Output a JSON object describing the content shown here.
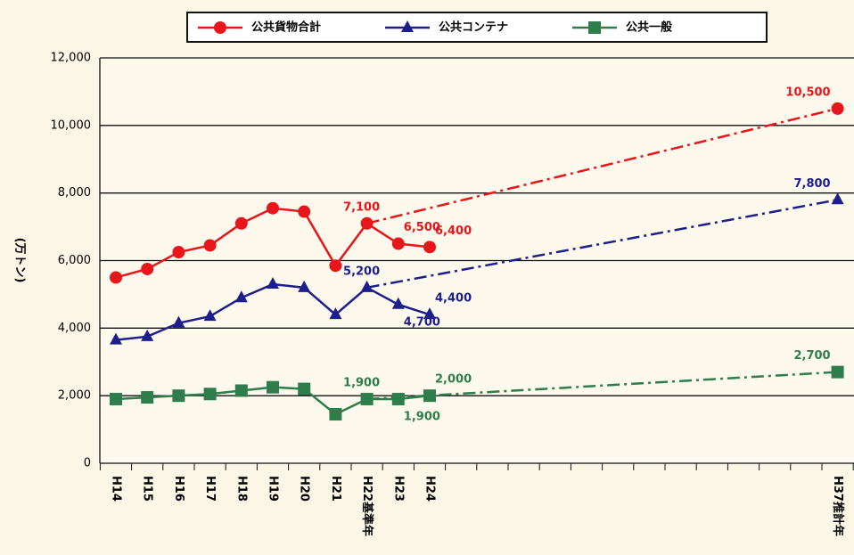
{
  "chart_data": {
    "type": "line",
    "ylabel": "(万トン)",
    "categories": [
      "H14",
      "H15",
      "H16",
      "H17",
      "H18",
      "H19",
      "H20",
      "H21",
      "H22基準年",
      "H23",
      "H24",
      null,
      null,
      null,
      null,
      null,
      null,
      null,
      null,
      null,
      null,
      null,
      null,
      "H37推計年"
    ],
    "series": [
      {
        "name": "公共貨物合計",
        "color": "#e8161b",
        "marker": "circle",
        "values": [
          5500,
          5750,
          6250,
          6450,
          7100,
          7550,
          7450,
          5850,
          7100,
          6500,
          6400,
          null,
          null,
          null,
          null,
          null,
          null,
          null,
          null,
          null,
          null,
          null,
          null,
          10500
        ],
        "value_labels": [
          null,
          null,
          null,
          null,
          null,
          null,
          null,
          null,
          "7,100",
          "6,500",
          "6,400",
          null,
          null,
          null,
          null,
          null,
          null,
          null,
          null,
          null,
          null,
          null,
          null,
          "10,500"
        ]
      },
      {
        "name": "公共コンテナ",
        "color": "#1c1f8c",
        "marker": "triangle",
        "values": [
          3650,
          3750,
          4150,
          4350,
          4900,
          5300,
          5200,
          4400,
          5200,
          4700,
          4400,
          null,
          null,
          null,
          null,
          null,
          null,
          null,
          null,
          null,
          null,
          null,
          null,
          7800
        ],
        "value_labels": [
          null,
          null,
          null,
          null,
          null,
          null,
          null,
          null,
          "5,200",
          "4,700",
          "4,400",
          null,
          null,
          null,
          null,
          null,
          null,
          null,
          null,
          null,
          null,
          null,
          null,
          "7,800"
        ]
      },
      {
        "name": "公共一般",
        "color": "#2e7d4a",
        "marker": "square",
        "values": [
          1900,
          1950,
          2000,
          2050,
          2150,
          2250,
          2200,
          1450,
          1900,
          1900,
          2000,
          null,
          null,
          null,
          null,
          null,
          null,
          null,
          null,
          null,
          null,
          null,
          null,
          2700
        ],
        "value_labels": [
          null,
          null,
          null,
          null,
          null,
          null,
          null,
          null,
          "1,900",
          "1,900",
          "2,000",
          null,
          null,
          null,
          null,
          null,
          null,
          null,
          null,
          null,
          null,
          null,
          null,
          "2,700"
        ]
      }
    ],
    "ylim": [
      0,
      12000
    ],
    "yticks": [
      0,
      {
        "value": 2000,
        "label": "2,000"
      },
      {
        "value": 4000,
        "label": "4,000"
      },
      {
        "value": 6000,
        "label": "6,000"
      },
      {
        "value": 8000,
        "label": "8,000"
      },
      {
        "value": 10000,
        "label": "10,000"
      },
      {
        "value": 12000,
        "label": "12,000"
      }
    ],
    "grid": true,
    "legend": "top"
  }
}
